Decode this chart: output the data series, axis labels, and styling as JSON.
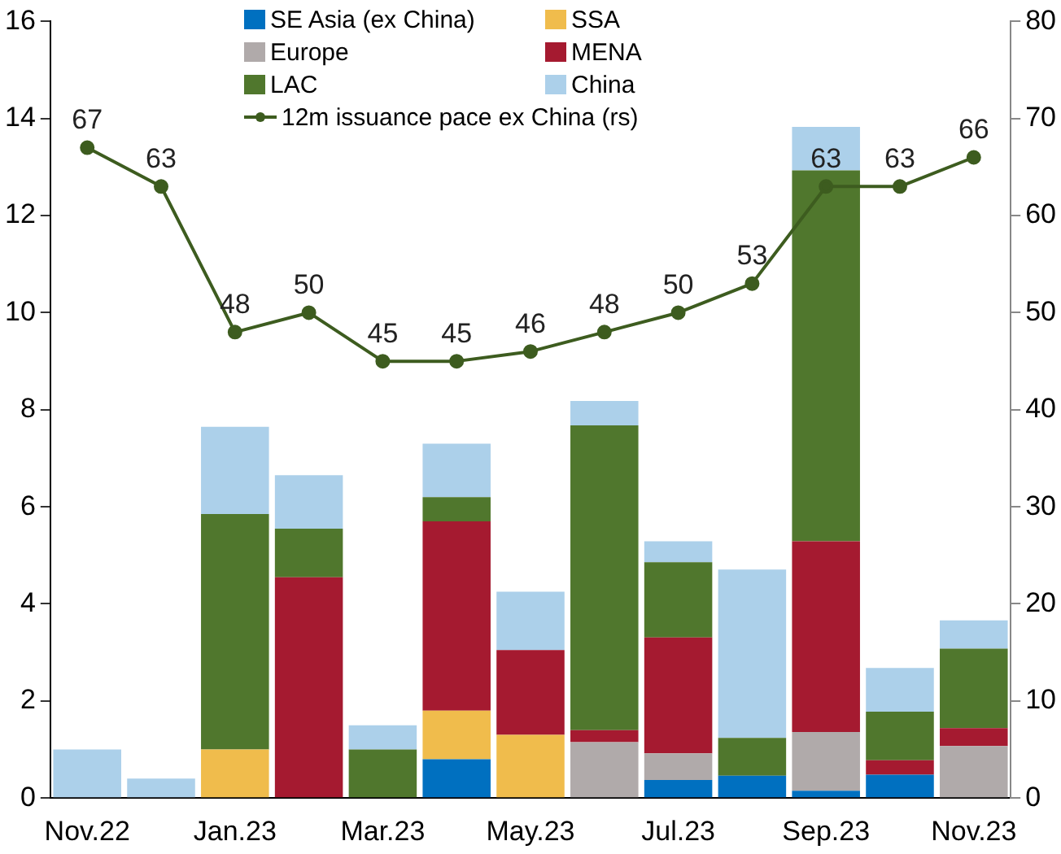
{
  "chart_data": {
    "type": "bar",
    "stacked": true,
    "categories": [
      "Nov.22",
      null,
      "Jan.23",
      null,
      "Mar.23",
      null,
      "May.23",
      null,
      "Jul.23",
      null,
      "Sep.23",
      null,
      "Nov.23"
    ],
    "series": [
      {
        "name": "SE Asia (ex China)",
        "color": "#0070c0",
        "values": [
          0,
          0,
          0,
          0,
          0,
          0.8,
          0,
          0,
          0.37,
          0.46,
          0.15,
          0.48,
          0
        ]
      },
      {
        "name": "SSA",
        "color": "#f0bc4c",
        "values": [
          0,
          0,
          1.0,
          0,
          0,
          1.0,
          1.3,
          0,
          0,
          0,
          0,
          0,
          0
        ]
      },
      {
        "name": "Europe",
        "color": "#b0aaaa",
        "values": [
          0,
          0,
          0,
          0,
          0,
          0,
          0,
          1.15,
          0.55,
          0,
          1.21,
          0,
          1.07
        ]
      },
      {
        "name": "MENA",
        "color": "#a51a30",
        "values": [
          0,
          0,
          0,
          4.55,
          0,
          3.9,
          1.75,
          0.25,
          2.39,
          0,
          3.93,
          0.3,
          0.37
        ]
      },
      {
        "name": "LAC",
        "color": "#50772d",
        "values": [
          0,
          0,
          4.85,
          1.0,
          1.0,
          0.5,
          0,
          6.28,
          1.55,
          0.78,
          7.64,
          1.0,
          1.64
        ]
      },
      {
        "name": "China",
        "color": "#acd0ea",
        "values": [
          1.0,
          0.4,
          1.8,
          1.1,
          0.5,
          1.1,
          1.2,
          0.5,
          0.43,
          3.47,
          0.9,
          0.9,
          0.58
        ]
      },
      {
        "name": "12m issuance pace ex China (rs)",
        "type": "line",
        "axis": "y2",
        "color": "#3d5c1f",
        "marker": "circle",
        "values": [
          67,
          63,
          48,
          50,
          45,
          45,
          46,
          48,
          50,
          53,
          63,
          63,
          66
        ],
        "value_labels": [
          "67",
          "63",
          "48",
          "50",
          "45",
          "45",
          "46",
          "48",
          "50",
          "53",
          "63",
          "63",
          "66"
        ]
      }
    ],
    "ylim": [
      0,
      16
    ],
    "yticks": [
      0,
      2,
      4,
      6,
      8,
      10,
      12,
      14,
      16
    ],
    "y2lim": [
      0,
      80
    ],
    "y2ticks": [
      0,
      10,
      20,
      30,
      40,
      50,
      60,
      70,
      80
    ],
    "grid": false,
    "legend": "top"
  }
}
